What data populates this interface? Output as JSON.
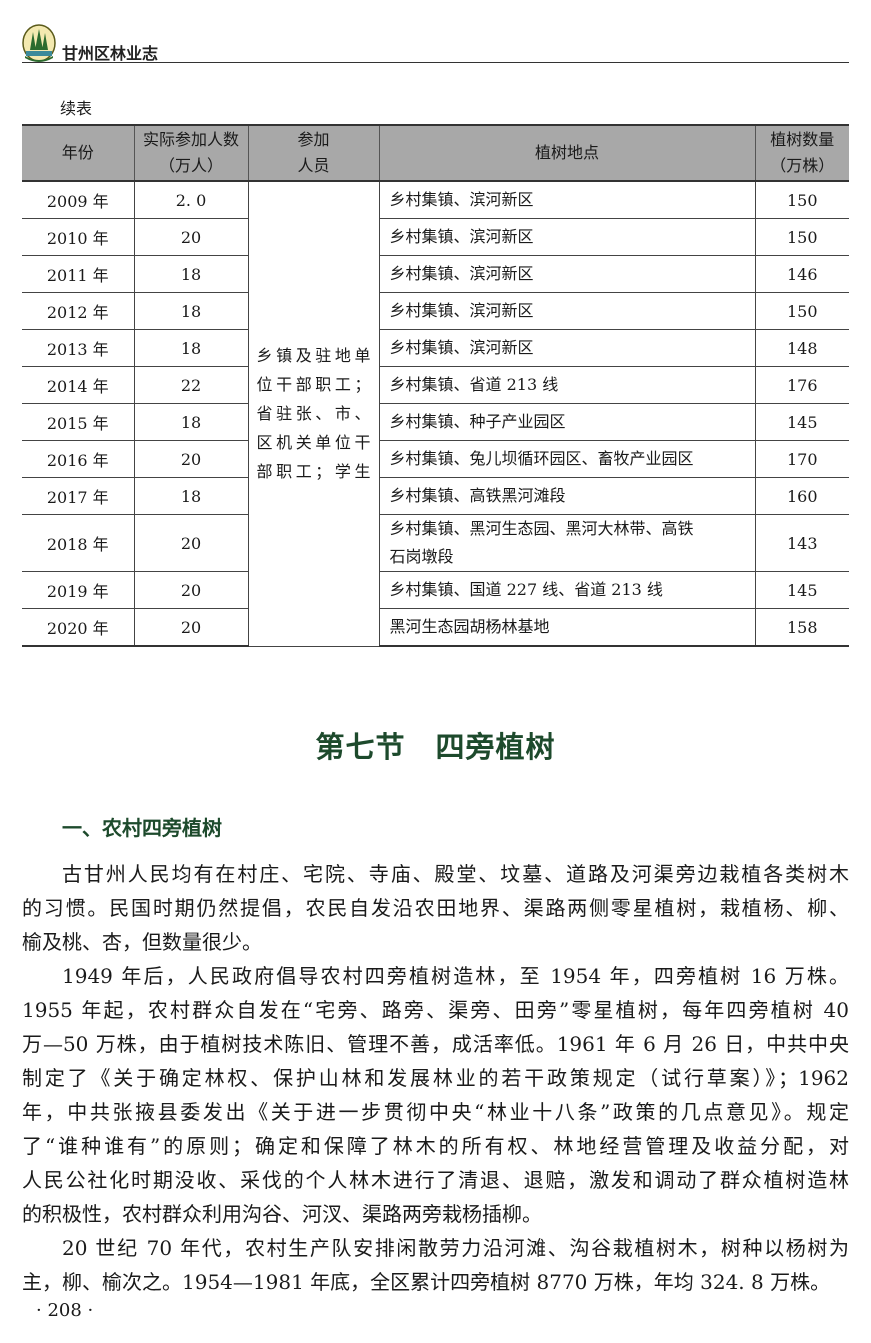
{
  "header": {
    "title": "甘州区林业志",
    "logo": "forest-emblem",
    "accent": "#1d4a2c"
  },
  "table": {
    "caption": "续表",
    "columns": [
      "年份",
      "实际参加人数（万人）",
      "参加人员",
      "植树地点",
      "植树数量（万株）"
    ],
    "col_lines": [
      [
        "年份"
      ],
      [
        "实际参加人数",
        "（万人）"
      ],
      [
        "参加",
        "人员"
      ],
      [
        "植树地点"
      ],
      [
        "植树数量",
        "（万株）"
      ]
    ],
    "participants_lines": [
      "乡镇及驻地单",
      "位干部职工；",
      "省驻张、市、",
      "区机关单位干",
      "部职工；学生"
    ],
    "rows": [
      {
        "year": "2009 年",
        "count": "2. 0",
        "location": [
          "乡村集镇、滨河新区"
        ],
        "trees": "150"
      },
      {
        "year": "2010 年",
        "count": "20",
        "location": [
          "乡村集镇、滨河新区"
        ],
        "trees": "150"
      },
      {
        "year": "2011 年",
        "count": "18",
        "location": [
          "乡村集镇、滨河新区"
        ],
        "trees": "146"
      },
      {
        "year": "2012 年",
        "count": "18",
        "location": [
          "乡村集镇、滨河新区"
        ],
        "trees": "150"
      },
      {
        "year": "2013 年",
        "count": "18",
        "location": [
          "乡村集镇、滨河新区"
        ],
        "trees": "148"
      },
      {
        "year": "2014 年",
        "count": "22",
        "location": [
          "乡村集镇、省道 213 线"
        ],
        "trees": "176"
      },
      {
        "year": "2015 年",
        "count": "18",
        "location": [
          "乡村集镇、种子产业园区"
        ],
        "trees": "145"
      },
      {
        "year": "2016 年",
        "count": "20",
        "location": [
          "乡村集镇、兔儿坝循环园区、畜牧产业园区"
        ],
        "trees": "170"
      },
      {
        "year": "2017 年",
        "count": "18",
        "location": [
          "乡村集镇、高铁黑河滩段"
        ],
        "trees": "160"
      },
      {
        "year": "2018 年",
        "count": "20",
        "location": [
          "乡村集镇、黑河生态园、黑河大林带、高铁",
          "石岗墩段"
        ],
        "trees": "143"
      },
      {
        "year": "2019 年",
        "count": "20",
        "location": [
          "乡村集镇、国道 227 线、省道 213 线"
        ],
        "trees": "145"
      },
      {
        "year": "2020 年",
        "count": "20",
        "location": [
          "黑河生态园胡杨林基地"
        ],
        "trees": "158"
      }
    ]
  },
  "section_title": "第七节　四旁植树",
  "subsection_title": "一、农村四旁植树",
  "paragraphs": [
    [
      "古甘州人民均有在村庄、宅院、寺庙、殿堂、坟墓、道路及河渠旁边栽植各类树木",
      "的习惯。民国时期仍然提倡，农民自发沿农田地界、渠路两侧零星植树，栽植杨、柳、",
      "榆及桃、杏，但数量很少。"
    ],
    [
      "1949 年后，人民政府倡导农村四旁植树造林，至 1954 年，四旁植树 16 万株。",
      "1955 年起，农村群众自发在“宅旁、路旁、渠旁、田旁”零星植树，每年四旁植树 40",
      "万—50 万株，由于植树技术陈旧、管理不善，成活率低。1961 年 6 月 26 日，中共中央",
      "制定了《关于确定林权、保护山林和发展林业的若干政策规定（试行草案）》；1962",
      "年，中共张掖县委发出《关于进一步贯彻中央“林业十八条”政策的几点意见》。规定",
      "了“谁种谁有”的原则；确定和保障了林木的所有权、林地经营管理及收益分配，对",
      "人民公社化时期没收、采伐的个人林木进行了清退、退赔，激发和调动了群众植树造林",
      "的积极性，农村群众利用沟谷、河汊、渠路两旁栽杨插柳。"
    ],
    [
      "20 世纪 70 年代，农村生产队安排闲散劳力沿河滩、沟谷栽植树木，树种以杨树为",
      "主，柳、榆次之。1954—1981 年底，全区累计四旁植树 8770 万株，年均 324. 8 万株。"
    ]
  ],
  "page_number": "· 208 ·"
}
